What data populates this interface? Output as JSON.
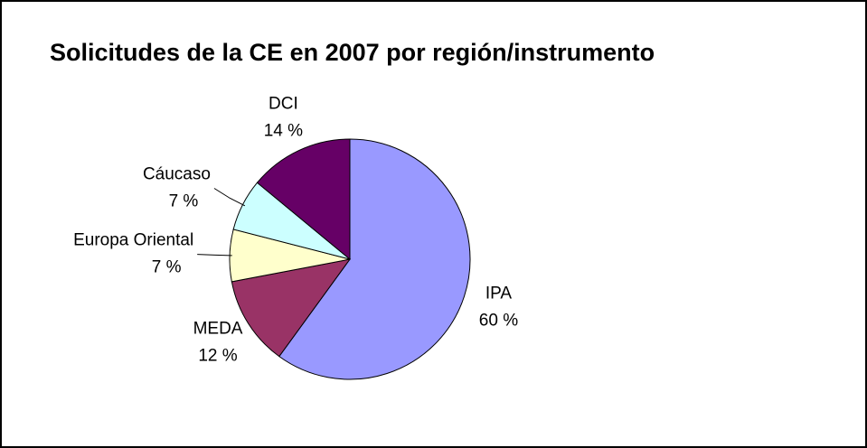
{
  "chart_data": {
    "type": "pie",
    "title": "Solicitudes de la CE en 2007 por región/instrumento",
    "categories": [
      "IPA",
      "MEDA",
      "Europa Oriental",
      "Cáucaso",
      "DCI"
    ],
    "values": [
      60,
      12,
      7,
      7,
      14
    ],
    "value_labels": [
      "60 %",
      "12 %",
      "7 %",
      "7 %",
      "14 %"
    ],
    "colors": [
      "#9999ff",
      "#993366",
      "#ffffcc",
      "#ccffff",
      "#660066"
    ]
  }
}
